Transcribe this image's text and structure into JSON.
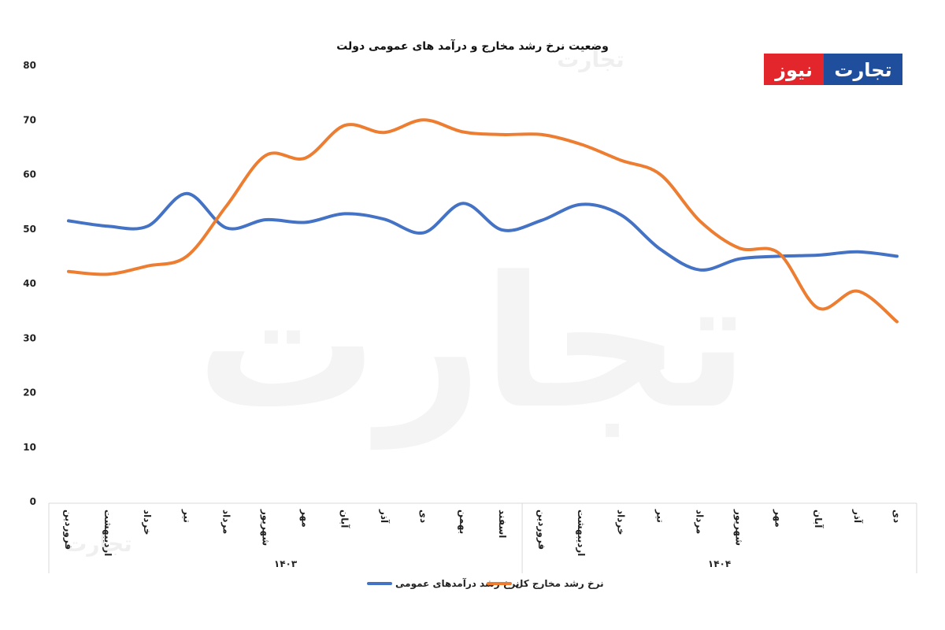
{
  "brand": {
    "name_part1": "تجارت",
    "name_part2": "نیوز",
    "color_blue": "#1f4e9c",
    "color_red": "#e3262c"
  },
  "chart_data": {
    "type": "line",
    "title": "وضعیت نرخ رشد مخارج و درآمد های عمومی دولت",
    "categories": [
      "فروردین",
      "اردیبهشت",
      "خرداد",
      "تیر",
      "مرداد",
      "شهریور",
      "مهر",
      "آبان",
      "آذر",
      "دی",
      "بهمن",
      "اسفند",
      "فروردین",
      "اردیبهشت",
      "خرداد",
      "تیر",
      "مرداد",
      "شهریور",
      "مهر",
      "آبان",
      "آذر",
      "دی"
    ],
    "groups": [
      {
        "label": "۱۴۰۳",
        "start": 0,
        "end": 11
      },
      {
        "label": "۱۴۰۴",
        "start": 12,
        "end": 21
      }
    ],
    "ylim": [
      0,
      80
    ],
    "yticks": [
      {
        "value": 0,
        "label": "0"
      },
      {
        "value": 10,
        "label": "10"
      },
      {
        "value": 20,
        "label": "20"
      },
      {
        "value": 30,
        "label": "30"
      },
      {
        "value": 40,
        "label": "40"
      },
      {
        "value": 50,
        "label": "50"
      },
      {
        "value": 60,
        "label": "60"
      },
      {
        "value": 70,
        "label": "70"
      },
      {
        "value": 80,
        "label": "80"
      }
    ],
    "grid": false,
    "legend_position": "bottom",
    "series": [
      {
        "name": "نرخ رشد درآمدهای عمومی",
        "color": "#4472c4",
        "values": [
          51.5,
          50.5,
          50.5,
          56.5,
          50.2,
          51.7,
          51.2,
          52.8,
          51.8,
          49.3,
          54.7,
          49.8,
          51.6,
          54.5,
          52.6,
          46.3,
          42.5,
          44.5,
          45.0,
          45.2,
          45.8,
          45.0
        ]
      },
      {
        "name": "نرخ رشد مخارج کل",
        "color": "#ed7d31",
        "values": [
          42.2,
          41.7,
          43.2,
          45.0,
          54.2,
          63.5,
          63.0,
          69.0,
          67.7,
          70.0,
          67.8,
          67.3,
          67.3,
          65.5,
          62.6,
          60.0,
          51.5,
          46.5,
          45.6,
          35.5,
          38.6,
          33.0
        ]
      }
    ]
  }
}
